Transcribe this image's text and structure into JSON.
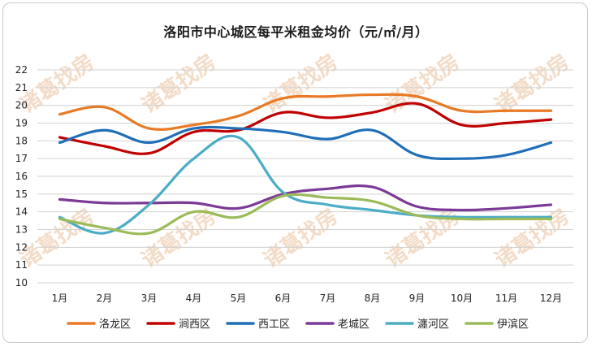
{
  "chart_data": {
    "type": "line",
    "title": "洛阳市中心城区每平米租金均价（元/㎡/月）",
    "categories": [
      "1月",
      "2月",
      "3月",
      "4月",
      "5月",
      "6月",
      "7月",
      "8月",
      "9月",
      "10月",
      "11月",
      "12月"
    ],
    "ylim": [
      10,
      22
    ],
    "yticks": [
      10,
      11,
      12,
      13,
      14,
      15,
      16,
      17,
      18,
      19,
      20,
      21,
      22
    ],
    "grid": true,
    "legend_position": "bottom",
    "series": [
      {
        "name": "洛龙区",
        "color": "#e87a25",
        "values": [
          19.5,
          19.9,
          18.7,
          18.9,
          19.4,
          20.4,
          20.5,
          20.6,
          20.5,
          19.7,
          19.7,
          19.7
        ]
      },
      {
        "name": "涧西区",
        "color": "#c00000",
        "values": [
          18.2,
          17.7,
          17.3,
          18.5,
          18.6,
          19.6,
          19.3,
          19.6,
          20.1,
          18.9,
          19.0,
          19.2
        ]
      },
      {
        "name": "西工区",
        "color": "#1f6fb8",
        "values": [
          17.9,
          18.6,
          17.9,
          18.7,
          18.7,
          18.5,
          18.1,
          18.6,
          17.2,
          17.0,
          17.2,
          17.9
        ]
      },
      {
        "name": "老城区",
        "color": "#7b3a96",
        "values": [
          14.7,
          14.5,
          14.5,
          14.5,
          14.2,
          15.0,
          15.3,
          15.4,
          14.3,
          14.1,
          14.2,
          14.4
        ]
      },
      {
        "name": "瀍河区",
        "color": "#4bacc6",
        "values": [
          13.7,
          12.8,
          14.4,
          17.0,
          18.2,
          15.1,
          14.4,
          14.1,
          13.8,
          13.7,
          13.7,
          13.7
        ]
      },
      {
        "name": "伊滨区",
        "color": "#9bbb59",
        "values": [
          13.6,
          13.1,
          12.8,
          14.0,
          13.7,
          14.9,
          14.8,
          14.6,
          13.8,
          13.6,
          13.6,
          13.6
        ]
      }
    ]
  },
  "watermark": "诸葛找房"
}
